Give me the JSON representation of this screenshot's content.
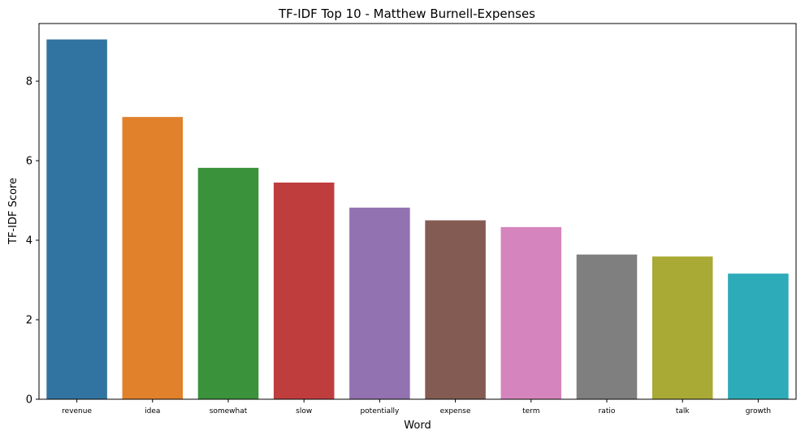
{
  "chart_data": {
    "type": "bar",
    "title": "TF-IDF Top 10 - Matthew Burnell-Expenses",
    "xlabel": "Word",
    "ylabel": "TF-IDF Score",
    "ylim": [
      0,
      9.45
    ],
    "yticks": [
      0,
      2,
      4,
      6,
      8
    ],
    "grid": false,
    "legend": "none",
    "categories": [
      "revenue",
      "idea",
      "somewhat",
      "slow",
      "potentially",
      "expense",
      "term",
      "ratio",
      "talk",
      "growth"
    ],
    "values": [
      9.05,
      7.1,
      5.82,
      5.45,
      4.82,
      4.5,
      4.33,
      3.64,
      3.59,
      3.16
    ],
    "colors": [
      "#3274a1",
      "#e1812c",
      "#3a923a",
      "#c03d3e",
      "#9372b2",
      "#845b53",
      "#d684bd",
      "#7f7f7f",
      "#a9aa35",
      "#2eabb8"
    ]
  }
}
